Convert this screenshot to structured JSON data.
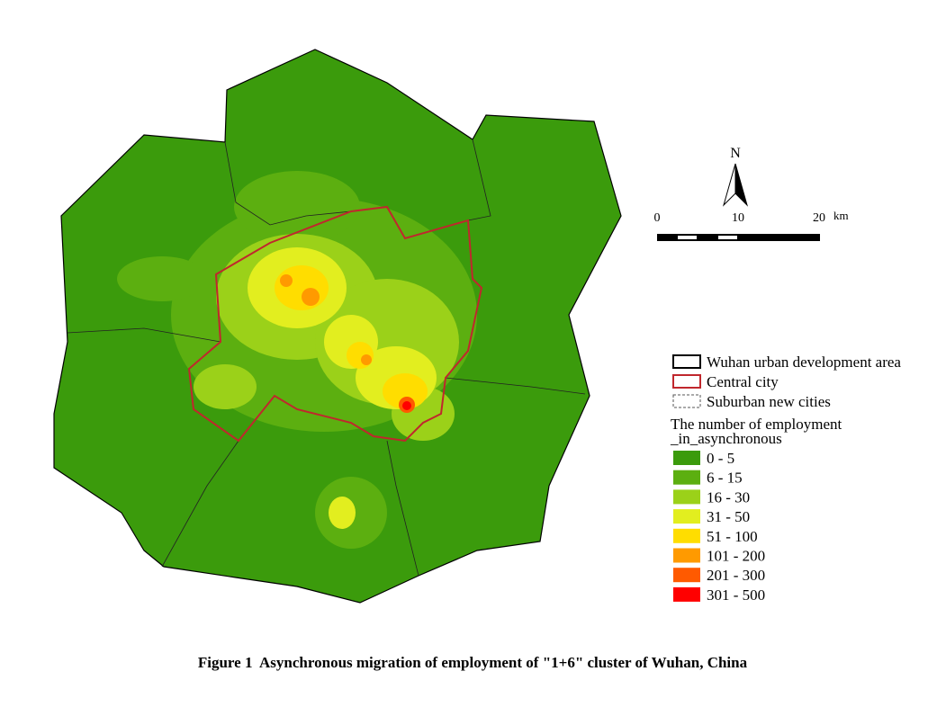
{
  "figure": {
    "caption": "Figure 1  Asynchronous migration of employment of \"1+6\" cluster of Wuhan, China"
  },
  "north_arrow": {
    "label": "N"
  },
  "scale_bar": {
    "ticks": [
      "0",
      "10",
      "20"
    ],
    "unit": "km"
  },
  "legend": {
    "boundaries": [
      {
        "label": "Wuhan urban development area",
        "color": "#000000",
        "style": "solid"
      },
      {
        "label": "Central city",
        "color": "#c0272d",
        "style": "solid"
      },
      {
        "label": "Suburban new cities",
        "color": "#555555",
        "style": "dashed"
      }
    ],
    "title": [
      "The number of employment",
      "_in_asynchronous"
    ],
    "classes": [
      {
        "label": "0 - 5",
        "color": "#3b9b0c"
      },
      {
        "label": "6 - 15",
        "color": "#5caf10"
      },
      {
        "label": "16 - 30",
        "color": "#9bd119"
      },
      {
        "label": "31 - 50",
        "color": "#e2ee1f"
      },
      {
        "label": "51 - 100",
        "color": "#ffdd00"
      },
      {
        "label": "101 - 200",
        "color": "#ff9a00"
      },
      {
        "label": "201 - 300",
        "color": "#ff5a00"
      },
      {
        "label": "301 - 500",
        "color": "#ff0000"
      }
    ]
  }
}
